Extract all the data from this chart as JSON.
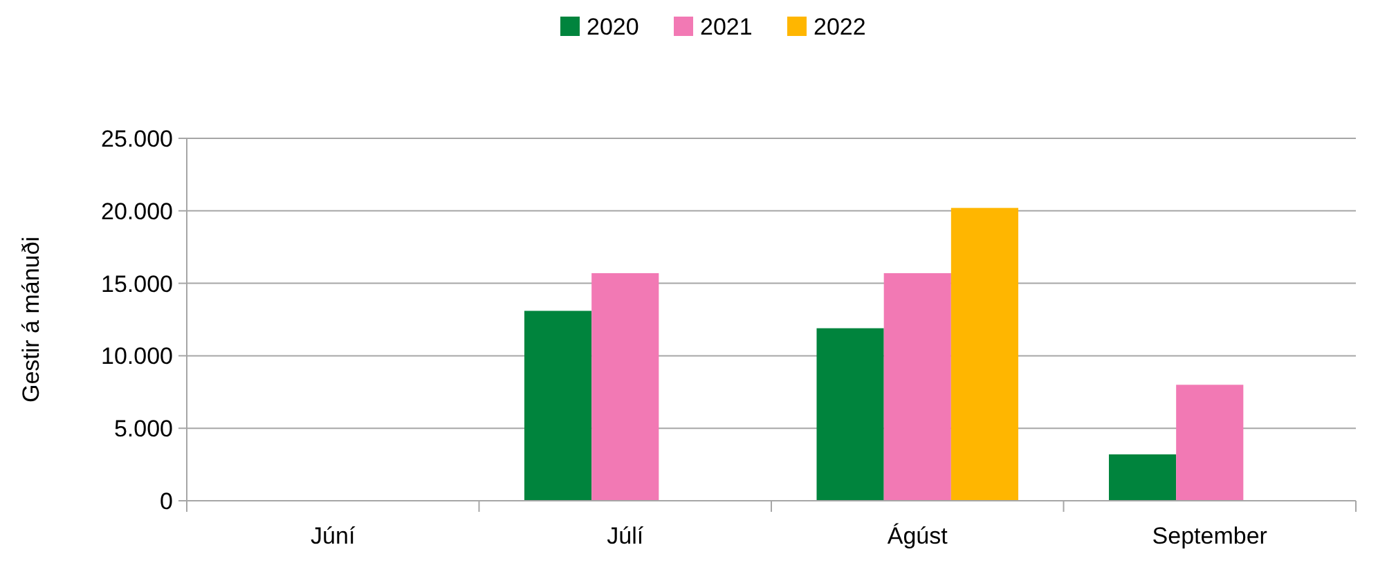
{
  "chart_data": {
    "type": "bar",
    "ylabel": "Gestir á mánuði",
    "categories": [
      "Júní",
      "Júlí",
      "Ágúst",
      "September"
    ],
    "series": [
      {
        "name": "2020",
        "color": "#00843d",
        "values": [
          null,
          13100,
          11900,
          3200
        ]
      },
      {
        "name": "2021",
        "color": "#f279b4",
        "values": [
          null,
          15700,
          15700,
          8000
        ]
      },
      {
        "name": "2022",
        "color": "#ffb600",
        "values": [
          null,
          null,
          20200,
          null
        ]
      }
    ],
    "ylim": [
      0,
      25000
    ],
    "yticks": [
      {
        "value": 0,
        "label": "0"
      },
      {
        "value": 5000,
        "label": "5.000"
      },
      {
        "value": 10000,
        "label": "10.000"
      },
      {
        "value": 15000,
        "label": "15.000"
      },
      {
        "value": 20000,
        "label": "20.000"
      },
      {
        "value": 25000,
        "label": "25.000"
      }
    ],
    "grid": "y",
    "legend": "top"
  }
}
